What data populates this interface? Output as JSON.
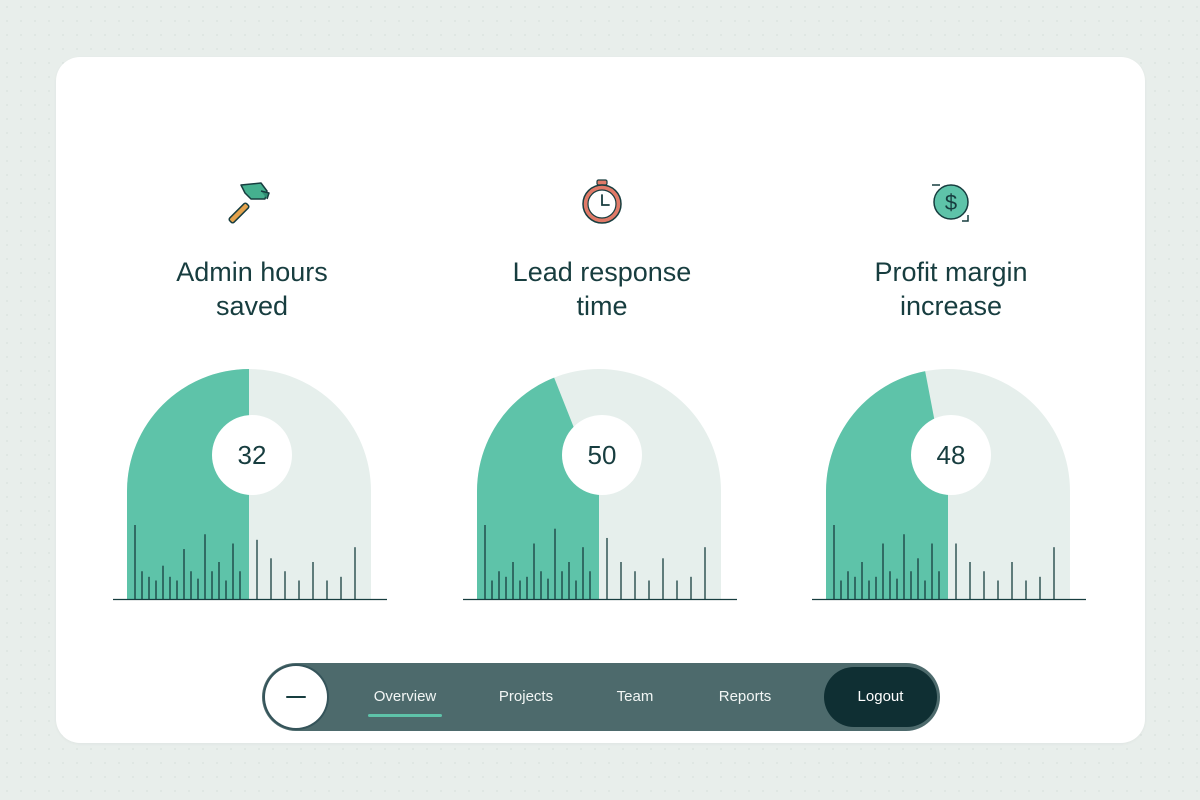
{
  "colors": {
    "accent": "#5ec3a9",
    "track": "#e6efec",
    "text": "#173d3f",
    "nav_bg": "#4d6a6c",
    "nav_dark": "#0f2f33",
    "hammer_icon": "#45b08f",
    "timer_icon": "#e07a68",
    "dollar_icon": "#5ec3a9"
  },
  "metrics": [
    {
      "icon": "hammer-icon",
      "title_line1": "Admin hours",
      "title_line2": "saved",
      "value": "32",
      "fill_fraction": 0.5,
      "filled_ticks": [
        0.4,
        0.15,
        0.12,
        0.1,
        0.18,
        0.12,
        0.1,
        0.27,
        0.15,
        0.11,
        0.35,
        0.15,
        0.2,
        0.1,
        0.3,
        0.15
      ],
      "track_ticks": [
        0.32,
        0.22,
        0.15,
        0.1,
        0.2,
        0.1,
        0.12,
        0.28
      ]
    },
    {
      "icon": "timer-icon",
      "title_line1": "Lead response",
      "title_line2": "time",
      "value": "50",
      "fill_fraction": 0.38,
      "filled_ticks": [
        0.4,
        0.1,
        0.15,
        0.12,
        0.2,
        0.1,
        0.12,
        0.3,
        0.15,
        0.11,
        0.38,
        0.15,
        0.2,
        0.1,
        0.28,
        0.15
      ],
      "track_ticks": [
        0.33,
        0.2,
        0.15,
        0.1,
        0.22,
        0.1,
        0.12,
        0.28
      ]
    },
    {
      "icon": "dollar-icon",
      "title_line1": "Profit margin",
      "title_line2": "increase",
      "value": "48",
      "fill_fraction": 0.44,
      "filled_ticks": [
        0.4,
        0.1,
        0.15,
        0.12,
        0.2,
        0.1,
        0.12,
        0.3,
        0.15,
        0.11,
        0.35,
        0.15,
        0.22,
        0.1,
        0.3,
        0.15
      ],
      "track_ticks": [
        0.3,
        0.2,
        0.15,
        0.1,
        0.2,
        0.1,
        0.12,
        0.28
      ]
    }
  ],
  "nav": {
    "toggle_icon": "minus-icon",
    "items": [
      {
        "label": "Overview",
        "active": true
      },
      {
        "label": "Projects",
        "active": false
      },
      {
        "label": "Team",
        "active": false
      },
      {
        "label": "Reports",
        "active": false
      }
    ],
    "logout_label": "Logout"
  }
}
